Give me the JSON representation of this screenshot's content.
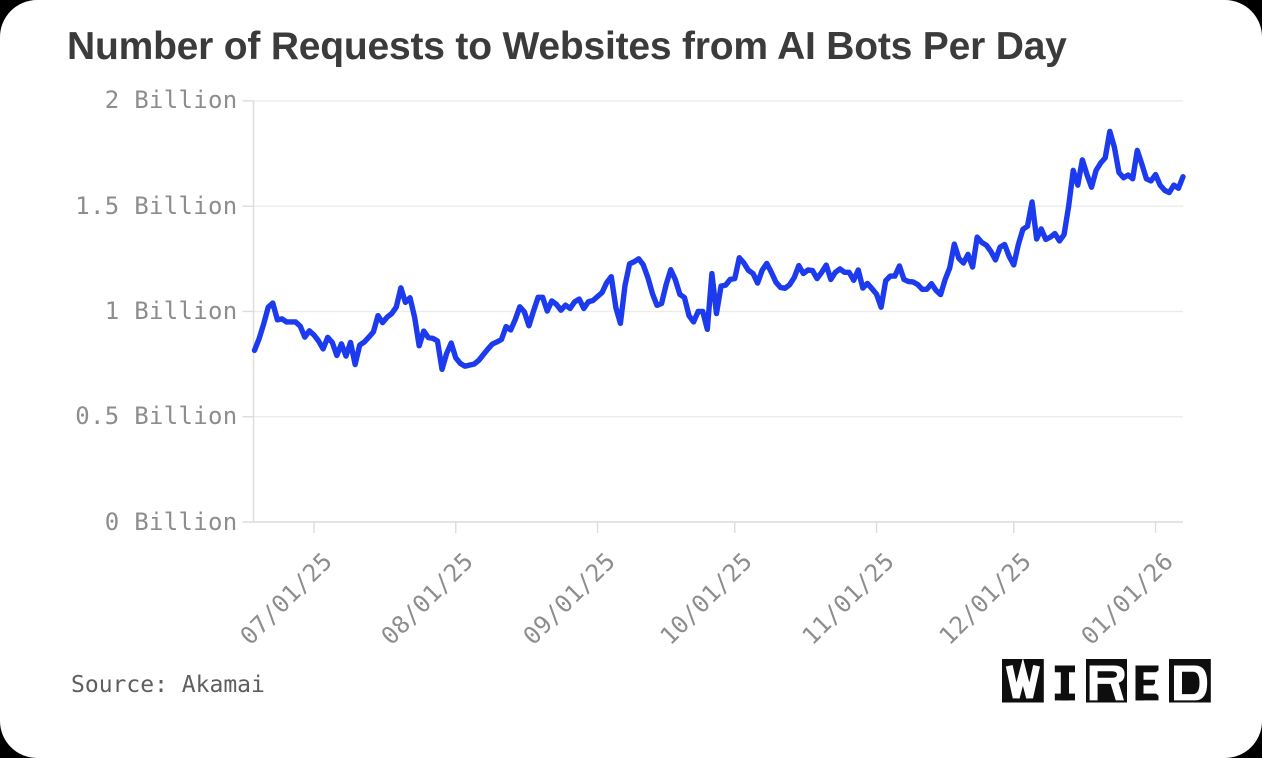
{
  "page": {
    "background_color": "#000000",
    "card_color": "#ffffff"
  },
  "title": "Number of Requests to Websites from AI Bots Per Day",
  "source_label": "Source: Akamai",
  "logo": {
    "brand": "WIRED",
    "letters": [
      "W",
      "I",
      "R",
      "E",
      "D"
    ],
    "box_color": "#0e0e0e",
    "letter_on_box_color": "#ffffff"
  },
  "colors": {
    "title_text": "#3b3b3b",
    "axis_label_text": "#8d8d8d",
    "source_text": "#5e5e5e",
    "gridline": "#ececec",
    "axis_line": "#dcdcdc",
    "series_line": "#1c3bee"
  },
  "chart_data": {
    "type": "line",
    "title": "Number of Requests to Websites from AI Bots Per Day",
    "unit": "Billion requests per day",
    "xlabel": "",
    "ylabel": "",
    "ylim": [
      0,
      2
    ],
    "y_ticks": [
      {
        "value": 0,
        "label": "0 Billion"
      },
      {
        "value": 0.5,
        "label": "0.5 Billion"
      },
      {
        "value": 1,
        "label": "1 Billion"
      },
      {
        "value": 1.5,
        "label": "1.5 Billion"
      },
      {
        "value": 2,
        "label": "2 Billion"
      }
    ],
    "x_tick_labels": [
      "07/01/25",
      "08/01/25",
      "09/01/25",
      "10/01/25",
      "11/01/25",
      "12/01/25",
      "01/01/26"
    ],
    "x_tick_indices": [
      13,
      44,
      75,
      105,
      136,
      166,
      197
    ],
    "grid": "horizontal",
    "legend": "none",
    "x": [
      "06/18/25",
      "06/19/25",
      "06/20/25",
      "06/21/25",
      "06/22/25",
      "06/23/25",
      "06/24/25",
      "06/25/25",
      "06/26/25",
      "06/27/25",
      "06/28/25",
      "06/29/25",
      "06/30/25",
      "07/01/25",
      "07/02/25",
      "07/03/25",
      "07/04/25",
      "07/05/25",
      "07/06/25",
      "07/07/25",
      "07/08/25",
      "07/09/25",
      "07/10/25",
      "07/11/25",
      "07/12/25",
      "07/13/25",
      "07/14/25",
      "07/15/25",
      "07/16/25",
      "07/17/25",
      "07/18/25",
      "07/19/25",
      "07/20/25",
      "07/21/25",
      "07/22/25",
      "07/23/25",
      "07/24/25",
      "07/25/25",
      "07/26/25",
      "07/27/25",
      "07/28/25",
      "07/29/25",
      "07/30/25",
      "07/31/25",
      "08/01/25",
      "08/02/25",
      "08/03/25",
      "08/04/25",
      "08/05/25",
      "08/06/25",
      "08/07/25",
      "08/08/25",
      "08/09/25",
      "08/10/25",
      "08/11/25",
      "08/12/25",
      "08/13/25",
      "08/14/25",
      "08/15/25",
      "08/16/25",
      "08/17/25",
      "08/18/25",
      "08/19/25",
      "08/20/25",
      "08/21/25",
      "08/22/25",
      "08/23/25",
      "08/24/25",
      "08/25/25",
      "08/26/25",
      "08/27/25",
      "08/28/25",
      "08/29/25",
      "08/30/25",
      "08/31/25",
      "09/01/25",
      "09/02/25",
      "09/03/25",
      "09/04/25",
      "09/05/25",
      "09/06/25",
      "09/07/25",
      "09/08/25",
      "09/09/25",
      "09/10/25",
      "09/11/25",
      "09/12/25",
      "09/13/25",
      "09/14/25",
      "09/15/25",
      "09/16/25",
      "09/17/25",
      "09/18/25",
      "09/19/25",
      "09/20/25",
      "09/21/25",
      "09/22/25",
      "09/23/25",
      "09/24/25",
      "09/25/25",
      "09/26/25",
      "09/27/25",
      "09/28/25",
      "09/29/25",
      "09/30/25",
      "10/01/25",
      "10/02/25",
      "10/03/25",
      "10/04/25",
      "10/05/25",
      "10/06/25",
      "10/07/25",
      "10/08/25",
      "10/09/25",
      "10/10/25",
      "10/11/25",
      "10/12/25",
      "10/13/25",
      "10/14/25",
      "10/15/25",
      "10/16/25",
      "10/17/25",
      "10/18/25",
      "10/19/25",
      "10/20/25",
      "10/21/25",
      "10/22/25",
      "10/23/25",
      "10/24/25",
      "10/25/25",
      "10/26/25",
      "10/27/25",
      "10/28/25",
      "10/29/25",
      "10/30/25",
      "10/31/25",
      "11/01/25",
      "11/02/25",
      "11/03/25",
      "11/04/25",
      "11/05/25",
      "11/06/25",
      "11/07/25",
      "11/08/25",
      "11/09/25",
      "11/10/25",
      "11/11/25",
      "11/12/25",
      "11/13/25",
      "11/14/25",
      "11/15/25",
      "11/16/25",
      "11/17/25",
      "11/18/25",
      "11/19/25",
      "11/20/25",
      "11/21/25",
      "11/22/25",
      "11/23/25",
      "11/24/25",
      "11/25/25",
      "11/26/25",
      "11/27/25",
      "11/28/25",
      "11/29/25",
      "11/30/25",
      "12/01/25",
      "12/02/25",
      "12/03/25",
      "12/04/25",
      "12/05/25",
      "12/06/25",
      "12/07/25",
      "12/08/25",
      "12/09/25",
      "12/10/25",
      "12/11/25",
      "12/12/25",
      "12/13/25",
      "12/14/25",
      "12/15/25",
      "12/16/25",
      "12/17/25",
      "12/18/25",
      "12/19/25",
      "12/20/25",
      "12/21/25",
      "12/22/25",
      "12/23/25",
      "12/24/25",
      "12/25/25",
      "12/26/25",
      "12/27/25",
      "12/28/25",
      "12/29/25",
      "12/30/25",
      "12/31/25",
      "01/01/26",
      "01/02/26",
      "01/03/26",
      "01/04/26",
      "01/05/26",
      "01/06/26",
      "01/07/26"
    ],
    "values": [
      0.815,
      0.87,
      0.94,
      1.02,
      1.04,
      0.96,
      0.965,
      0.95,
      0.95,
      0.95,
      0.93,
      0.878,
      0.908,
      0.888,
      0.86,
      0.822,
      0.877,
      0.853,
      0.791,
      0.846,
      0.788,
      0.853,
      0.748,
      0.84,
      0.855,
      0.878,
      0.903,
      0.98,
      0.947,
      0.973,
      0.99,
      1.021,
      1.112,
      1.043,
      1.065,
      0.973,
      0.837,
      0.907,
      0.876,
      0.872,
      0.86,
      0.725,
      0.8,
      0.85,
      0.78,
      0.753,
      0.74,
      0.745,
      0.75,
      0.767,
      0.794,
      0.821,
      0.845,
      0.855,
      0.867,
      0.928,
      0.912,
      0.961,
      1.022,
      0.998,
      0.932,
      1.002,
      1.067,
      1.067,
      1.002,
      1.05,
      1.034,
      1.006,
      1.03,
      1.014,
      1.046,
      1.059,
      1.014,
      1.046,
      1.052,
      1.071,
      1.09,
      1.137,
      1.165,
      1.019,
      0.944,
      1.123,
      1.226,
      1.236,
      1.25,
      1.221,
      1.161,
      1.085,
      1.029,
      1.038,
      1.128,
      1.198,
      1.151,
      1.081,
      1.066,
      0.98,
      0.95,
      1.0,
      1.0,
      0.915,
      1.18,
      0.99,
      1.12,
      1.125,
      1.152,
      1.156,
      1.255,
      1.23,
      1.195,
      1.18,
      1.135,
      1.196,
      1.228,
      1.186,
      1.139,
      1.114,
      1.11,
      1.127,
      1.161,
      1.218,
      1.18,
      1.197,
      1.194,
      1.156,
      1.186,
      1.22,
      1.152,
      1.186,
      1.202,
      1.186,
      1.186,
      1.148,
      1.197,
      1.111,
      1.133,
      1.108,
      1.082,
      1.02,
      1.146,
      1.168,
      1.168,
      1.216,
      1.152,
      1.142,
      1.14,
      1.128,
      1.105,
      1.105,
      1.132,
      1.1,
      1.08,
      1.152,
      1.207,
      1.32,
      1.252,
      1.23,
      1.271,
      1.211,
      1.353,
      1.328,
      1.315,
      1.285,
      1.245,
      1.305,
      1.318,
      1.261,
      1.221,
      1.318,
      1.39,
      1.405,
      1.52,
      1.344,
      1.392,
      1.342,
      1.353,
      1.37,
      1.335,
      1.365,
      1.5,
      1.67,
      1.6,
      1.72,
      1.65,
      1.59,
      1.67,
      1.705,
      1.73,
      1.855,
      1.78,
      1.66,
      1.635,
      1.648,
      1.63,
      1.765,
      1.7,
      1.63,
      1.62,
      1.65,
      1.6,
      1.575,
      1.565,
      1.6,
      1.585,
      1.64
    ]
  }
}
